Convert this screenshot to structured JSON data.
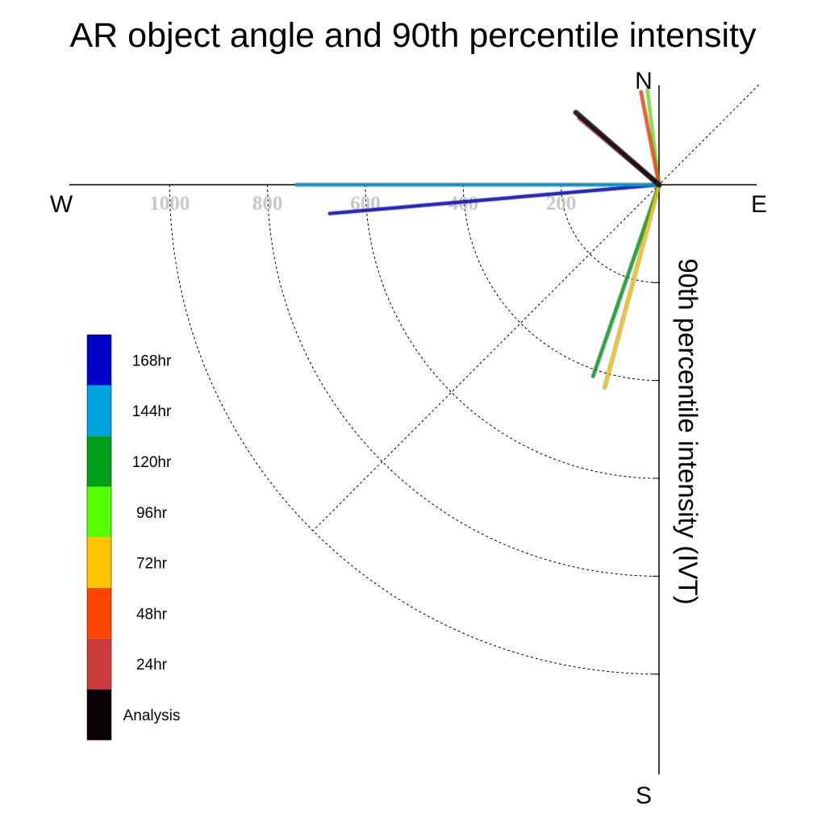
{
  "chart_data": {
    "type": "polar-vector",
    "title": "AR object angle and 90th percentile intensity",
    "ylabel": "90th percentile intensity (IVT)",
    "directions": {
      "north": "N",
      "east": "E",
      "south": "S",
      "west": "W"
    },
    "radial_ticks": [
      200,
      400,
      600,
      800,
      1000
    ],
    "radial_tick_labels": [
      "200",
      "400",
      "600",
      "800",
      "1000"
    ],
    "angle_convention": "degrees clockwise from north",
    "grid": true,
    "legend_placement": "left",
    "series": [
      {
        "name": "Analysis",
        "color": "#0a0008",
        "angle_deg": 311,
        "intensity": 225,
        "width": 6
      },
      {
        "name": "24hr",
        "color": "#cc3b3b",
        "angle_deg": 310,
        "intensity": 212,
        "width": 5
      },
      {
        "name": "48hr",
        "color": "#ff4400",
        "angle_deg": 349,
        "intensity": 193,
        "width": 4
      },
      {
        "name": "72hr",
        "color": "#ffc400",
        "angle_deg": 195,
        "intensity": 429,
        "width": 4
      },
      {
        "name": "96hr",
        "color": "#55ff00",
        "angle_deg": 353,
        "intensity": 195,
        "width": 3
      },
      {
        "name": "120hr",
        "color": "#009f19",
        "angle_deg": 199,
        "intensity": 414,
        "width": 4
      },
      {
        "name": "144hr",
        "color": "#00a3e0",
        "angle_deg": 270,
        "intensity": 741,
        "width": 4
      },
      {
        "name": "168hr",
        "color": "#0000c8",
        "angle_deg": 265,
        "intensity": 675,
        "width": 4
      }
    ],
    "legend_order": [
      "168hr",
      "144hr",
      "120hr",
      "96hr",
      "72hr",
      "48hr",
      "24hr",
      "Analysis"
    ]
  }
}
